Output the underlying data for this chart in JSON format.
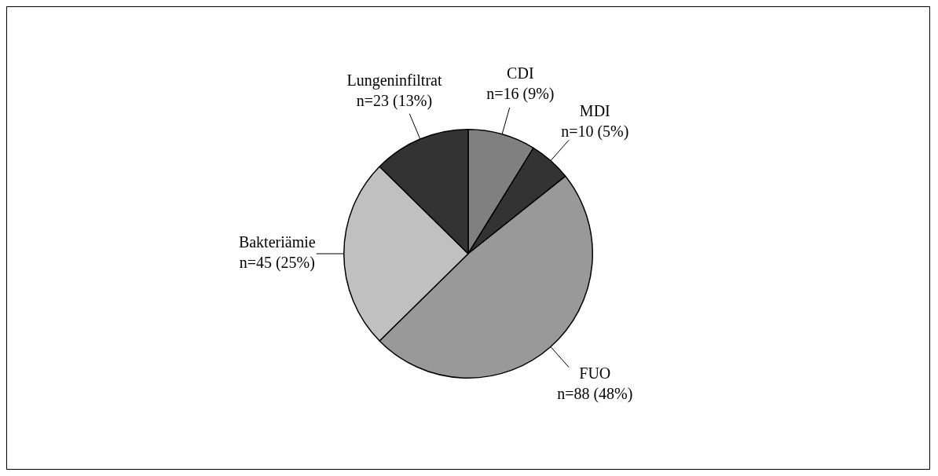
{
  "chart_data": {
    "type": "pie",
    "categories": [
      "CDI",
      "MDI",
      "FUO",
      "Bakteriämie",
      "Lungeninfiltrat"
    ],
    "values": [
      16,
      10,
      88,
      45,
      23
    ],
    "value_labels": [
      "n=16 (9%)",
      "n=10 (5%)",
      "n=88 (48%)",
      "n=45 (25%)",
      "n=23 (13%)"
    ],
    "colors": [
      "#808080",
      "#333333",
      "#999999",
      "#c0c0c0",
      "#333333"
    ],
    "legend": false
  }
}
